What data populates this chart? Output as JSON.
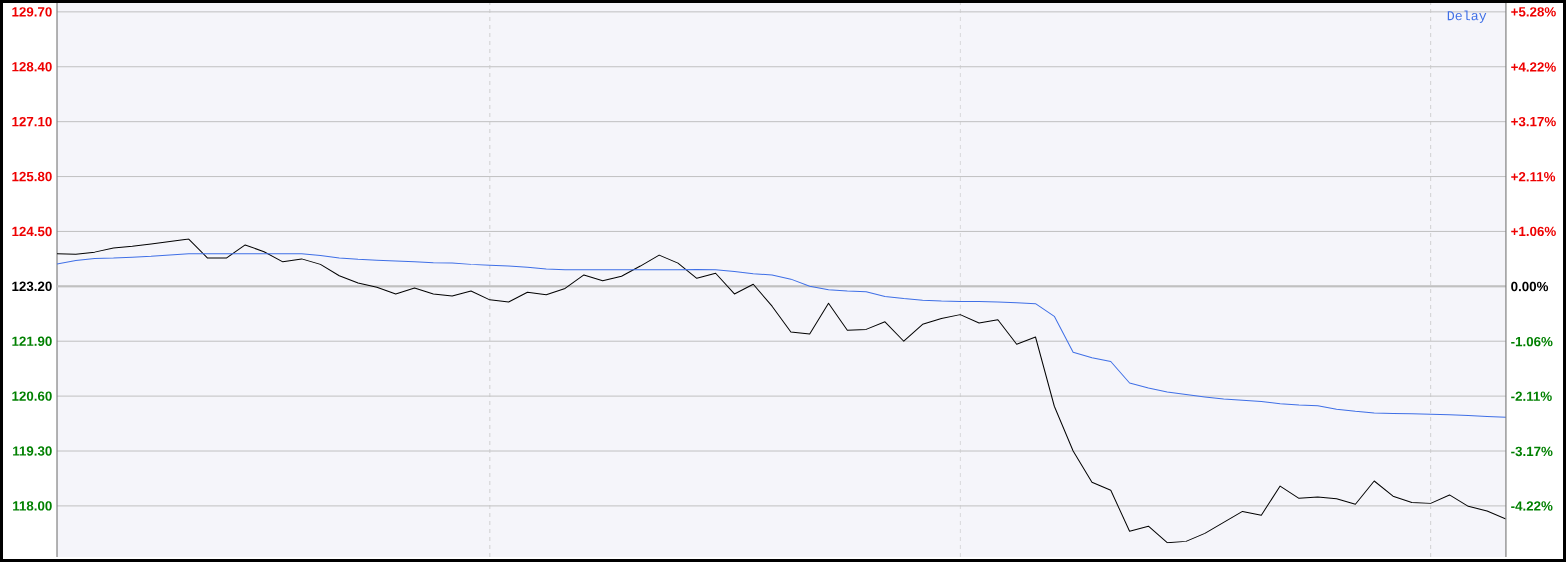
{
  "chart_data": {
    "type": "line",
    "annotations": [
      "Delay"
    ],
    "categories": [
      null,
      null,
      null,
      null,
      null,
      null,
      null,
      null,
      null,
      null,
      null,
      null,
      null,
      null,
      null,
      null,
      null,
      null,
      null,
      null,
      null,
      null,
      null,
      null,
      null,
      null,
      null,
      null,
      null,
      null,
      null,
      null,
      null,
      null,
      null,
      null,
      null,
      null,
      null,
      null,
      null,
      null,
      null,
      null,
      null,
      null,
      null,
      null,
      null,
      null,
      null,
      null,
      null,
      null,
      null,
      null,
      null,
      null,
      null,
      null,
      null,
      null,
      null,
      null,
      null,
      null,
      null,
      null,
      null,
      null,
      null,
      null,
      null,
      null,
      null,
      null,
      null,
      null
    ],
    "ylim": [
      116.79,
      129.91
    ],
    "yticks": [
      {
        "value": 118.0,
        "label": "118.00"
      },
      {
        "value": 119.3,
        "label": "119.30"
      },
      {
        "value": 120.6,
        "label": "120.60"
      },
      {
        "value": 121.9,
        "label": "121.90"
      },
      {
        "value": 123.2,
        "label": "123.20"
      },
      {
        "value": 124.5,
        "label": "124.50"
      },
      {
        "value": 125.8,
        "label": "125.80"
      },
      {
        "value": 127.1,
        "label": "127.10"
      },
      {
        "value": 128.4,
        "label": "128.40"
      },
      {
        "value": 129.7,
        "label": "129.70"
      }
    ],
    "y2lim": [
      -5.2,
      5.45
    ],
    "y2ticks": [
      {
        "value": -4.22,
        "label": "-4.22%"
      },
      {
        "value": -3.17,
        "label": "-3.17%"
      },
      {
        "value": -2.11,
        "label": "-2.11%"
      },
      {
        "value": -1.06,
        "label": "-1.06%"
      },
      {
        "value": 0,
        "label": "0.00%"
      },
      {
        "value": 1.06,
        "label": "+1.06%"
      },
      {
        "value": 2.11,
        "label": "+2.11%"
      },
      {
        "value": 3.17,
        "label": "+3.17%"
      },
      {
        "value": 4.22,
        "label": "+4.22%"
      },
      {
        "value": 5.28,
        "label": "+5.28%"
      }
    ],
    "grid": true,
    "ref_lines": [
      {
        "axis": "y",
        "value": 123.2,
        "color": "#c0c0c0"
      }
    ],
    "series": [
      {
        "color": "#000000",
        "values": [
          123.97,
          123.96,
          124.01,
          124.11,
          124.15,
          124.2,
          124.26,
          124.32,
          123.87,
          123.87,
          124.18,
          124.02,
          123.78,
          123.85,
          123.72,
          123.45,
          123.28,
          123.18,
          123.02,
          123.16,
          123.02,
          122.97,
          123.09,
          122.88,
          122.83,
          123.06,
          123.0,
          123.15,
          123.47,
          123.33,
          123.44,
          123.68,
          123.94,
          123.75,
          123.39,
          123.51,
          123.02,
          123.25,
          122.73,
          122.12,
          122.07,
          122.8,
          122.16,
          122.18,
          122.36,
          121.9,
          122.3,
          122.44,
          122.53,
          122.33,
          122.41,
          121.83,
          122.0,
          120.36,
          119.3,
          118.56,
          118.37,
          117.4,
          117.52,
          117.13,
          117.16,
          117.35,
          117.61,
          117.87,
          117.78,
          118.47,
          118.18,
          118.21,
          118.17,
          118.04,
          118.59,
          118.23,
          118.08,
          118.06,
          118.26,
          117.99,
          117.88,
          117.69
        ]
      },
      {
        "color": "#3f6fe6",
        "values": [
          123.73,
          123.81,
          123.86,
          123.87,
          123.89,
          123.91,
          123.94,
          123.97,
          123.97,
          123.97,
          123.97,
          123.97,
          123.97,
          123.97,
          123.93,
          123.87,
          123.84,
          123.82,
          123.8,
          123.78,
          123.76,
          123.75,
          123.72,
          123.7,
          123.68,
          123.65,
          123.61,
          123.59,
          123.59,
          123.59,
          123.59,
          123.59,
          123.59,
          123.59,
          123.6,
          123.59,
          123.55,
          123.5,
          123.47,
          123.37,
          123.2,
          123.12,
          123.09,
          123.07,
          122.96,
          122.91,
          122.87,
          122.85,
          122.84,
          122.84,
          122.83,
          122.81,
          122.79,
          122.49,
          121.64,
          121.51,
          121.42,
          120.91,
          120.79,
          120.7,
          120.64,
          120.58,
          120.53,
          120.5,
          120.47,
          120.42,
          120.39,
          120.37,
          120.29,
          120.24,
          120.2,
          120.19,
          120.18,
          120.17,
          120.16,
          120.14,
          120.12,
          120.1
        ]
      }
    ]
  }
}
